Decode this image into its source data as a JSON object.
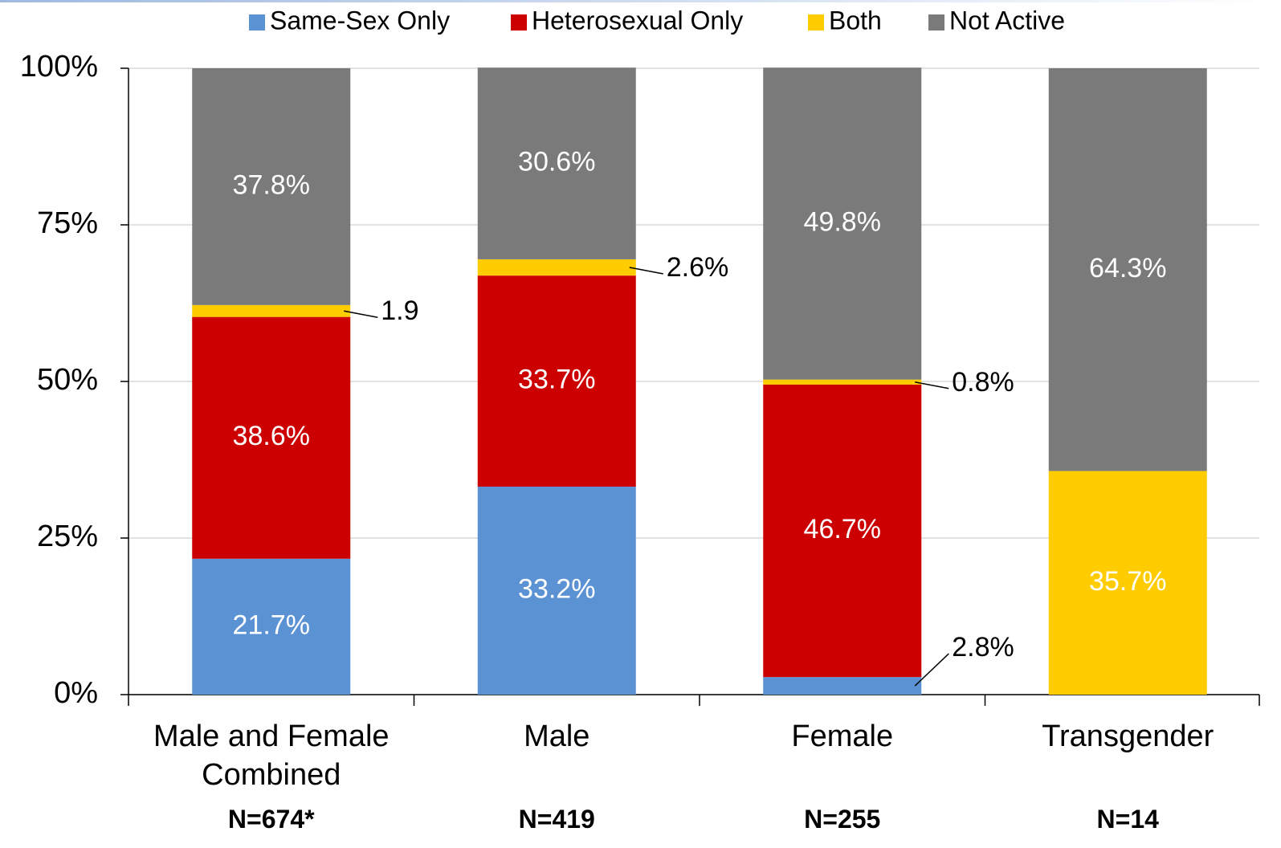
{
  "chart_data": {
    "type": "stacked_bar",
    "categories": [
      "Male and Female Combined",
      "Male",
      "Female",
      "Transgender"
    ],
    "sample_sizes": [
      "N=674*",
      "N=419",
      "N=255",
      "N=14"
    ],
    "series": [
      {
        "name": "Same-Sex Only",
        "color": "#5b92d4",
        "values": [
          21.7,
          33.2,
          2.8,
          null
        ],
        "value_labels": [
          "21.7%",
          "33.2%",
          "2.8%",
          null
        ]
      },
      {
        "name": "Heterosexual Only",
        "color": "#cc0000",
        "values": [
          38.6,
          33.7,
          46.7,
          null
        ],
        "value_labels": [
          "38.6%",
          "33.7%",
          "46.7%",
          null
        ]
      },
      {
        "name": "Both",
        "color": "#ffcc00",
        "values": [
          1.9,
          2.6,
          0.8,
          35.7
        ],
        "value_labels": [
          "1.9",
          "2.6%",
          "0.8%",
          "35.7%"
        ]
      },
      {
        "name": "Not Active",
        "color": "#7a7a7a",
        "values": [
          37.8,
          30.6,
          49.8,
          64.3
        ],
        "value_labels": [
          "37.8%",
          "30.6%",
          "49.8%",
          "64.3%"
        ]
      }
    ],
    "ylim": [
      0,
      100
    ],
    "yticks": [
      {
        "value": 0,
        "label": "0%"
      },
      {
        "value": 25,
        "label": "25%"
      },
      {
        "value": 50,
        "label": "50%"
      },
      {
        "value": 75,
        "label": "75%"
      },
      {
        "value": 100,
        "label": "100%"
      }
    ],
    "grid": true
  }
}
